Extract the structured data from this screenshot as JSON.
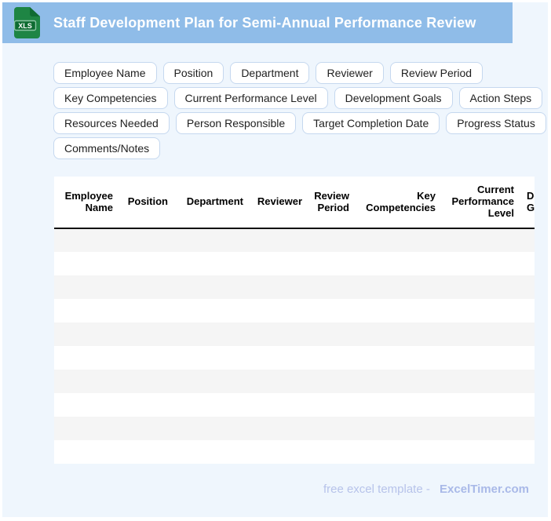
{
  "page": {
    "background": "#EFF6FD",
    "frame": "#FFFFFF"
  },
  "banner": {
    "title": "Staff Development Plan for Semi-Annual Performance Review",
    "background": "#8FBCE8",
    "icon": {
      "name": "xls-file-icon",
      "label": "XLS",
      "body_color": "#1E8544",
      "fold_color": "#0F6B33",
      "band_color": "#0E6B31",
      "band_border": "#8CC6A4"
    }
  },
  "chips": {
    "items": [
      "Employee Name",
      "Position",
      "Department",
      "Reviewer",
      "Review Period",
      "Key Competencies",
      "Current Performance Level",
      "Development Goals",
      "Action Steps",
      "Resources Needed",
      "Person Responsible",
      "Target Completion Date",
      "Progress Status",
      "Comments/Notes"
    ]
  },
  "table": {
    "columns": [
      "Employee Name",
      "Position",
      "Department",
      "Reviewer",
      "Review Period",
      "Key Competencies",
      "Current Performance Level",
      "Development Goals"
    ],
    "empty_row_count": 10,
    "stripe_color": "#F5F5F5"
  },
  "footer": {
    "prefix": "free excel template -",
    "brand": "ExcelTimer.com"
  }
}
